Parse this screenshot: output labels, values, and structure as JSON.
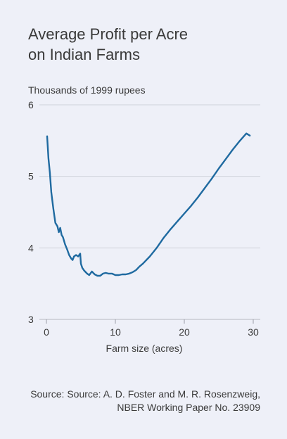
{
  "title": {
    "line1": "Average Profit per Acre",
    "line2": "on Indian Farms"
  },
  "source": {
    "line1": "Source: Source: A. D. Foster and M. R. Rosenzweig,",
    "line2": "NBER Working Paper No. 23909"
  },
  "chart_data": {
    "type": "line",
    "title": "Average Profit per Acre on Indian Farms",
    "ylabel": "Thousands of 1999 rupees",
    "xlabel": "Farm size (acres)",
    "xlim": [
      0,
      30
    ],
    "ylim": [
      3,
      6
    ],
    "xticks": [
      0,
      10,
      20,
      30
    ],
    "yticks": [
      3,
      4,
      5,
      6
    ],
    "grid": "horizontal",
    "line_color": "#1f6aa0",
    "series": [
      {
        "x": [
          0.1,
          0.3,
          0.5,
          0.7,
          1.0,
          1.3,
          1.6,
          1.8,
          2.0,
          2.2,
          2.4,
          2.7,
          3.0,
          3.3,
          3.6,
          3.8,
          4.0,
          4.3,
          4.6,
          4.9,
          5.0,
          5.2,
          5.5,
          5.9,
          6.2,
          6.6,
          7.0,
          7.4,
          7.8,
          8.2,
          8.6,
          9.0,
          9.5,
          10.0,
          10.5,
          11.0,
          11.5,
          12.0,
          12.5,
          13.0,
          13.5,
          14.0,
          15.0,
          16.0,
          17.0,
          18.0,
          19.0,
          20.0,
          21.0,
          22.0,
          23.0,
          24.0,
          25.0,
          26.0,
          27.0,
          28.0,
          29.0,
          29.5
        ],
        "y": [
          5.56,
          5.25,
          5.05,
          4.78,
          4.55,
          4.35,
          4.3,
          4.22,
          4.28,
          4.18,
          4.15,
          4.05,
          3.98,
          3.9,
          3.85,
          3.83,
          3.88,
          3.9,
          3.88,
          3.92,
          3.78,
          3.72,
          3.68,
          3.64,
          3.62,
          3.67,
          3.63,
          3.61,
          3.61,
          3.64,
          3.65,
          3.64,
          3.64,
          3.62,
          3.62,
          3.63,
          3.63,
          3.64,
          3.66,
          3.69,
          3.74,
          3.78,
          3.88,
          4.0,
          4.14,
          4.26,
          4.37,
          4.48,
          4.59,
          4.71,
          4.84,
          4.97,
          5.11,
          5.24,
          5.37,
          5.49,
          5.6,
          5.57
        ]
      }
    ]
  }
}
